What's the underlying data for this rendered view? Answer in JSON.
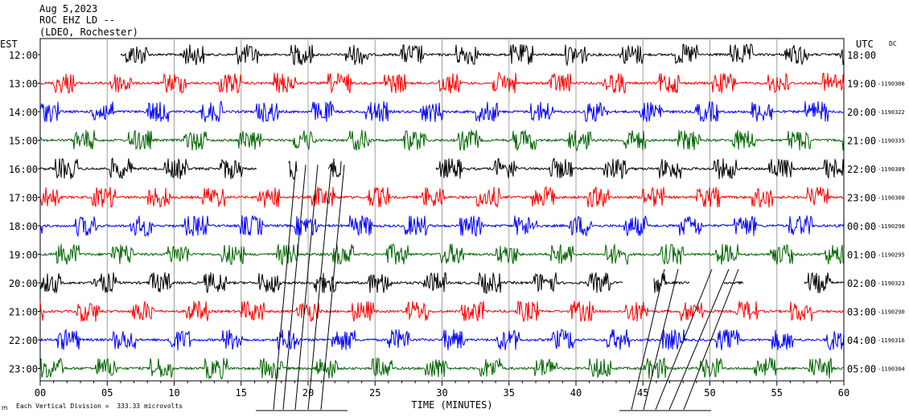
{
  "header": {
    "date": "Aug 5,2023",
    "station": "ROC EHZ LD --",
    "network": "(LDEO, Rochester)"
  },
  "left_axis_title": "EST",
  "right_axis_title": "UTC",
  "dc_label": "DC",
  "footer": {
    "scale_note": "Each Vertical Division =  333.33 microvolts"
  },
  "colors": {
    "black": "#000000",
    "red": "#ff0000",
    "blue": "#0000ff",
    "green": "#006400",
    "grid": "#a0a0a0"
  },
  "chart_data": {
    "type": "line",
    "title": "ROC EHZ LD -- (LDEO, Rochester)",
    "xlabel": "TIME (MINUTES)",
    "xlim": [
      0,
      60
    ],
    "x_ticks": [
      "00",
      "05",
      "10",
      "15",
      "20",
      "25",
      "30",
      "35",
      "40",
      "45",
      "50",
      "55",
      "60"
    ],
    "rows": [
      {
        "est": "12:00",
        "utc": "18:00",
        "dc": "",
        "color": "black"
      },
      {
        "est": "13:00",
        "utc": "19:00",
        "dc": "-1190306",
        "color": "red"
      },
      {
        "est": "14:00",
        "utc": "20:00",
        "dc": "-1190322",
        "color": "blue"
      },
      {
        "est": "15:00",
        "utc": "21:00",
        "dc": "-1190335",
        "color": "green"
      },
      {
        "est": "16:00",
        "utc": "22:00",
        "dc": "-1190309",
        "color": "black"
      },
      {
        "est": "17:00",
        "utc": "23:00",
        "dc": "-1190300",
        "color": "red"
      },
      {
        "est": "18:00",
        "utc": "00:00",
        "dc": "-1190290",
        "color": "blue"
      },
      {
        "est": "19:00",
        "utc": "01:00",
        "dc": "-1190295",
        "color": "green"
      },
      {
        "est": "20:00",
        "utc": "02:00",
        "dc": "-1190323",
        "color": "black"
      },
      {
        "est": "21:00",
        "utc": "03:00",
        "dc": "-1190290",
        "color": "red"
      },
      {
        "est": "22:00",
        "utc": "04:00",
        "dc": "-1190316",
        "color": "blue"
      },
      {
        "est": "23:00",
        "utc": "05:00",
        "dc": "-1190304",
        "color": "green"
      }
    ]
  }
}
